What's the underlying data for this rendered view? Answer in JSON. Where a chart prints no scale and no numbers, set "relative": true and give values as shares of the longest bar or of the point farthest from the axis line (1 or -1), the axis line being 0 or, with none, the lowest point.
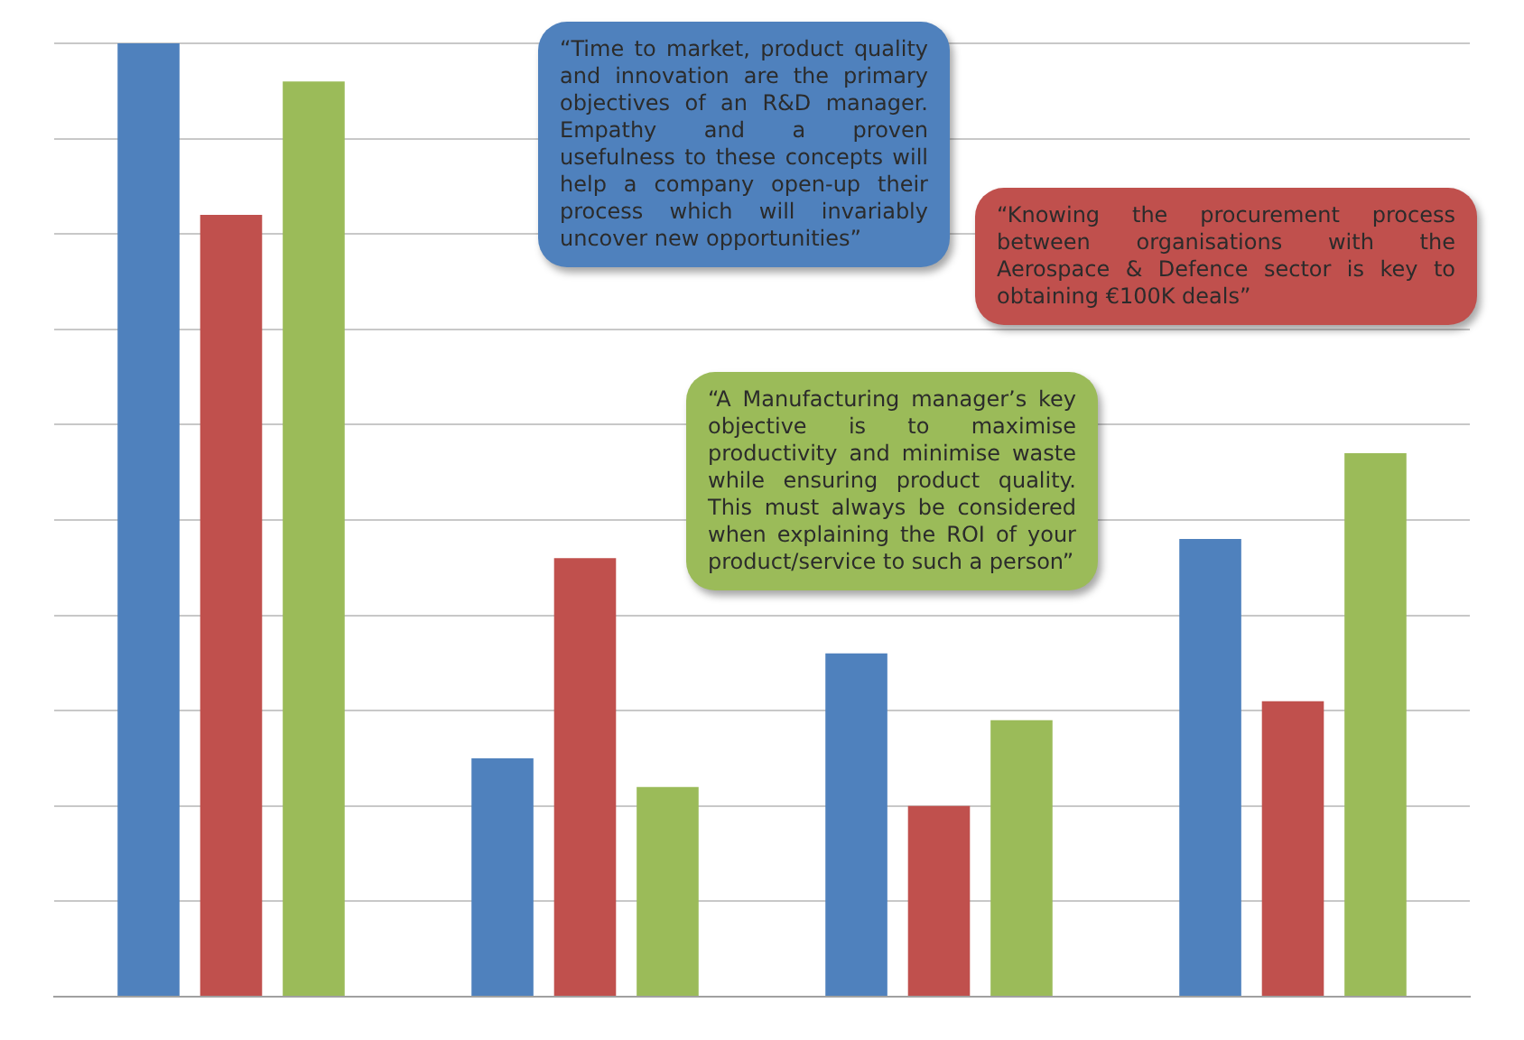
{
  "chart_data": {
    "type": "bar",
    "relative": true,
    "categories": [
      null,
      null,
      null,
      null
    ],
    "series": [
      {
        "color": "#4f81bd",
        "values": [
          1,
          0.25,
          0.36,
          0.48
        ]
      },
      {
        "color": "#c0504d",
        "values": [
          0.82,
          0.46,
          0.2,
          0.31
        ]
      },
      {
        "color": "#9bbb59",
        "values": [
          0.96,
          0.22,
          0.29,
          0.57
        ]
      }
    ],
    "grid": "y",
    "tick_labels": false,
    "annotations": [
      "“Time to market, product quality and innovation are the primary objectives of an R&D manager.  Empathy and a proven usefulness to these concepts will help a company open-up their process which will invariably uncover new opportunities”",
      "“Knowing the procurement process between organisations with the Aerospace & Defence sector is key to obtaining €100K deals”",
      "“A Manufacturing manager’s key objective is to maximise productivity and minimise waste while ensuring product quality.  This must always be considered when explaining the ROI of your product/service to such a person”"
    ]
  }
}
